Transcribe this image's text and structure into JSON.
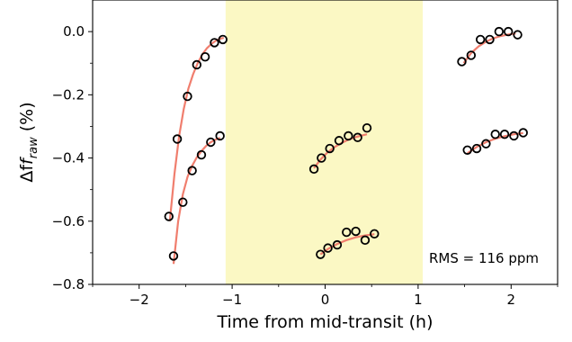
{
  "chart_data": {
    "type": "scatter",
    "xlabel": "Time from mid-transit (h)",
    "ylabel_prefix": "Δf",
    "ylabel_sub": "raw",
    "ylabel_suffix": " (%)",
    "xlim": [
      -2.5,
      2.5
    ],
    "ylim": [
      -0.8,
      0.1
    ],
    "xticks": [
      -2,
      -1,
      0,
      1,
      2
    ],
    "xtick_labels": [
      "−2",
      "−1",
      "0",
      "1",
      "2"
    ],
    "yticks": [
      0.0,
      -0.2,
      -0.4,
      -0.6,
      -0.8
    ],
    "ytick_labels": [
      "0.0",
      "−0.2",
      "−0.4",
      "−0.6",
      "−0.8"
    ],
    "grid": false,
    "highlight_span": {
      "x": [
        -1.07,
        1.05
      ],
      "color": "#fbf8c4"
    },
    "annotation": "RMS = 116 ppm",
    "marker_color": "#000000",
    "fit_color": "#f07e6e",
    "series": [
      {
        "points": [
          [
            -1.63,
            -0.71
          ],
          [
            -1.53,
            -0.54
          ],
          [
            -1.43,
            -0.44
          ],
          [
            -1.33,
            -0.39
          ],
          [
            -1.23,
            -0.35
          ],
          [
            -1.13,
            -0.33
          ]
        ],
        "fit": [
          [
            -1.63,
            -0.735
          ],
          [
            -1.58,
            -0.6
          ],
          [
            -1.53,
            -0.515
          ],
          [
            -1.48,
            -0.46
          ],
          [
            -1.43,
            -0.425
          ],
          [
            -1.38,
            -0.398
          ],
          [
            -1.33,
            -0.378
          ],
          [
            -1.28,
            -0.362
          ],
          [
            -1.23,
            -0.35
          ],
          [
            -1.18,
            -0.342
          ],
          [
            -1.13,
            -0.336
          ]
        ]
      },
      {
        "points": [
          [
            -1.68,
            -0.585
          ],
          [
            -1.59,
            -0.34
          ],
          [
            -1.48,
            -0.205
          ],
          [
            -1.38,
            -0.105
          ],
          [
            -1.29,
            -0.08
          ],
          [
            -1.19,
            -0.035
          ],
          [
            -1.1,
            -0.025
          ]
        ],
        "fit": [
          [
            -1.67,
            -0.6
          ],
          [
            -1.62,
            -0.45
          ],
          [
            -1.57,
            -0.33
          ],
          [
            -1.52,
            -0.245
          ],
          [
            -1.47,
            -0.18
          ],
          [
            -1.42,
            -0.135
          ],
          [
            -1.37,
            -0.1
          ],
          [
            -1.32,
            -0.072
          ],
          [
            -1.27,
            -0.052
          ],
          [
            -1.22,
            -0.038
          ],
          [
            -1.17,
            -0.028
          ],
          [
            -1.12,
            -0.022
          ],
          [
            -1.09,
            -0.02
          ]
        ]
      },
      {
        "points": [
          [
            -0.12,
            -0.435
          ],
          [
            -0.04,
            -0.4
          ],
          [
            0.05,
            -0.37
          ],
          [
            0.15,
            -0.345
          ],
          [
            0.25,
            -0.33
          ],
          [
            0.35,
            -0.335
          ],
          [
            0.45,
            -0.305
          ]
        ],
        "fit": [
          [
            -0.12,
            -0.432
          ],
          [
            -0.05,
            -0.405
          ],
          [
            0.02,
            -0.384
          ],
          [
            0.1,
            -0.366
          ],
          [
            0.18,
            -0.352
          ],
          [
            0.26,
            -0.341
          ],
          [
            0.34,
            -0.333
          ],
          [
            0.42,
            -0.327
          ],
          [
            0.45,
            -0.325
          ]
        ]
      },
      {
        "points": [
          [
            -0.05,
            -0.705
          ],
          [
            0.03,
            -0.685
          ],
          [
            0.13,
            -0.675
          ],
          [
            0.23,
            -0.635
          ],
          [
            0.33,
            -0.632
          ],
          [
            0.43,
            -0.66
          ],
          [
            0.53,
            -0.64
          ]
        ],
        "fit": [
          [
            -0.05,
            -0.705
          ],
          [
            0.03,
            -0.688
          ],
          [
            0.13,
            -0.672
          ],
          [
            0.23,
            -0.66
          ],
          [
            0.33,
            -0.651
          ],
          [
            0.43,
            -0.645
          ],
          [
            0.53,
            -0.641
          ]
        ]
      },
      {
        "points": [
          [
            1.47,
            -0.095
          ],
          [
            1.57,
            -0.075
          ],
          [
            1.67,
            -0.025
          ],
          [
            1.77,
            -0.025
          ],
          [
            1.87,
            0.0
          ],
          [
            1.97,
            0.0
          ],
          [
            2.07,
            -0.01
          ]
        ],
        "fit": [
          [
            1.49,
            -0.1
          ],
          [
            1.57,
            -0.068
          ],
          [
            1.65,
            -0.047
          ],
          [
            1.73,
            -0.032
          ],
          [
            1.81,
            -0.021
          ],
          [
            1.89,
            -0.014
          ],
          [
            1.97,
            -0.009
          ],
          [
            2.05,
            -0.006
          ]
        ]
      },
      {
        "points": [
          [
            1.53,
            -0.375
          ],
          [
            1.63,
            -0.37
          ],
          [
            1.73,
            -0.355
          ],
          [
            1.83,
            -0.325
          ],
          [
            1.93,
            -0.325
          ],
          [
            2.03,
            -0.33
          ],
          [
            2.13,
            -0.32
          ]
        ],
        "fit": [
          [
            1.53,
            -0.385
          ],
          [
            1.63,
            -0.365
          ],
          [
            1.73,
            -0.35
          ],
          [
            1.83,
            -0.339
          ],
          [
            1.93,
            -0.331
          ],
          [
            2.03,
            -0.325
          ],
          [
            2.13,
            -0.321
          ]
        ]
      }
    ]
  }
}
